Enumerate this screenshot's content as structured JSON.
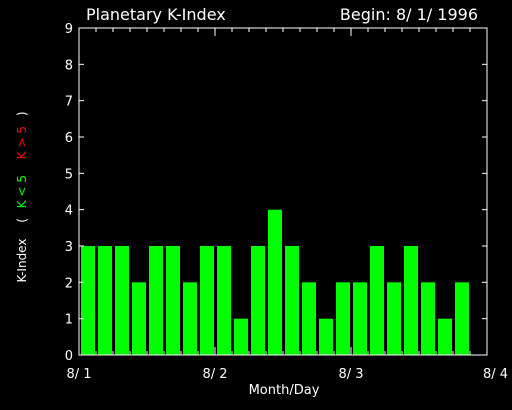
{
  "colors": {
    "background": "#000000",
    "foreground": "#ffffff",
    "bar": "#00ff00",
    "low_k": "#00ff00",
    "high_k": "#ff0000"
  },
  "chart_data": {
    "type": "bar",
    "title": "Planetary K-Index",
    "begin_label": "Begin: 8/ 1/ 1996",
    "xlabel": "Month/Day",
    "ylabel": {
      "main": "K-Index",
      "open_paren": "(",
      "low_legend": "K < 5",
      "high_legend": "K > 5",
      "close_paren": ")"
    },
    "ylim": [
      0,
      9
    ],
    "yticks": [
      "0",
      "1",
      "2",
      "3",
      "4",
      "5",
      "6",
      "7",
      "8",
      "9"
    ],
    "xlim": [
      0,
      3
    ],
    "xticks": [
      {
        "label": "8/ 1",
        "day": 0
      },
      {
        "label": "8/ 2",
        "day": 1
      },
      {
        "label": "8/ 3",
        "day": 2
      },
      {
        "label": "8/ 4",
        "day": 3
      }
    ],
    "bar_interval_days": 0.125,
    "values": [
      3,
      3,
      3,
      2,
      3,
      3,
      2,
      3,
      3,
      1,
      3,
      4,
      3,
      2,
      1,
      2,
      2,
      3,
      2,
      3,
      2,
      1,
      2,
      0
    ],
    "grid": false
  }
}
